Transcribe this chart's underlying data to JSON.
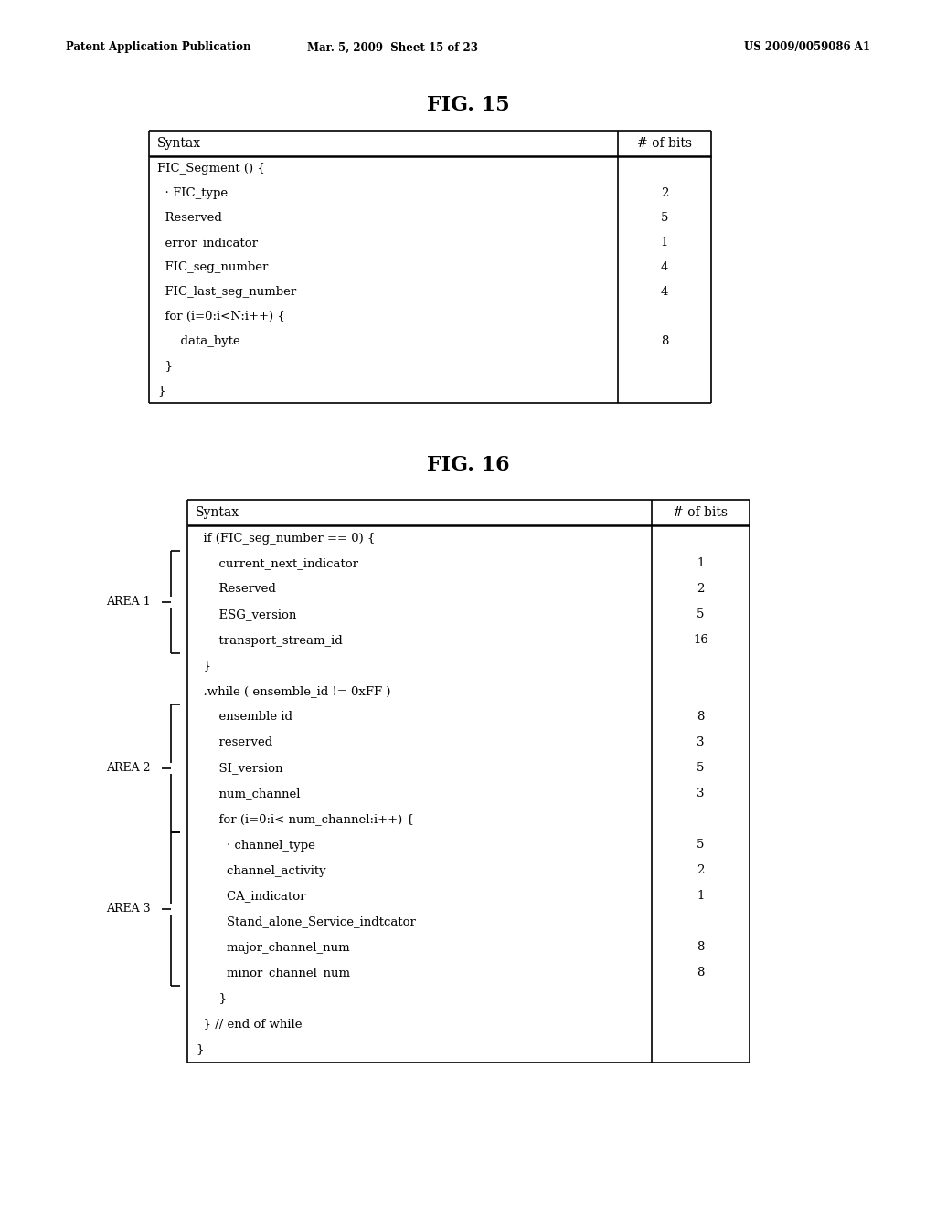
{
  "header_text_left": "Patent Application Publication",
  "header_text_mid": "Mar. 5, 2009  Sheet 15 of 23",
  "header_text_right": "US 2009/0059086 A1",
  "fig15_title": "FIG. 15",
  "fig16_title": "FIG. 16",
  "fig15_rows": [
    {
      "syntax": "FIC_Segment () {",
      "bits": ""
    },
    {
      "syntax": "  · FIC_type",
      "bits": "2"
    },
    {
      "syntax": "  Reserved",
      "bits": "5"
    },
    {
      "syntax": "  error_indicator",
      "bits": "1"
    },
    {
      "syntax": "  FIC_seg_number",
      "bits": "4"
    },
    {
      "syntax": "  FIC_last_seg_number",
      "bits": "4"
    },
    {
      "syntax": "  for (i=0:i<N:i++) {",
      "bits": ""
    },
    {
      "syntax": "      data_byte",
      "bits": "8"
    },
    {
      "syntax": "  }",
      "bits": ""
    },
    {
      "syntax": "}",
      "bits": ""
    }
  ],
  "fig16_rows": [
    {
      "syntax": "  if (FIC_seg_number == 0) {",
      "bits": "",
      "area": ""
    },
    {
      "syntax": "      current_next_indicator",
      "bits": "1",
      "area": "AREA 1"
    },
    {
      "syntax": "      Reserved",
      "bits": "2",
      "area": "AREA 1"
    },
    {
      "syntax": "      ESG_version",
      "bits": "5",
      "area": "AREA 1"
    },
    {
      "syntax": "      transport_stream_id",
      "bits": "16",
      "area": "AREA 1"
    },
    {
      "syntax": "  }",
      "bits": "",
      "area": ""
    },
    {
      "syntax": "  .while ( ensemble_id != 0xFF )",
      "bits": "",
      "area": ""
    },
    {
      "syntax": "      ensemble id",
      "bits": "8",
      "area": "AREA 2"
    },
    {
      "syntax": "      reserved",
      "bits": "3",
      "area": "AREA 2"
    },
    {
      "syntax": "      SI_version",
      "bits": "5",
      "area": "AREA 2"
    },
    {
      "syntax": "      num_channel",
      "bits": "3",
      "area": "AREA 2"
    },
    {
      "syntax": "      for (i=0:i< num_channel:i++) {",
      "bits": "",
      "area": "AREA 2"
    },
    {
      "syntax": "        · channel_type",
      "bits": "5",
      "area": "AREA 3"
    },
    {
      "syntax": "        channel_activity",
      "bits": "2",
      "area": "AREA 3"
    },
    {
      "syntax": "        CA_indicator",
      "bits": "1",
      "area": "AREA 3"
    },
    {
      "syntax": "        Stand_alone_Service_indtcator",
      "bits": "",
      "area": "AREA 3"
    },
    {
      "syntax": "        major_channel_num",
      "bits": "8",
      "area": "AREA 3"
    },
    {
      "syntax": "        minor_channel_num",
      "bits": "8",
      "area": "AREA 3"
    },
    {
      "syntax": "      }",
      "bits": "",
      "area": ""
    },
    {
      "syntax": "  } // end of while",
      "bits": "",
      "area": ""
    },
    {
      "syntax": "}",
      "bits": "",
      "area": ""
    }
  ],
  "background_color": "#ffffff",
  "text_color": "#000000"
}
